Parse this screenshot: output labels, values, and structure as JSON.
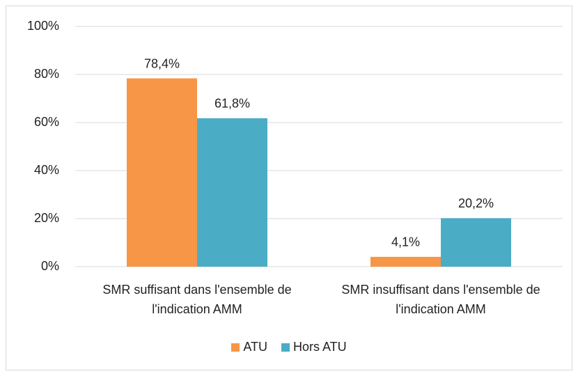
{
  "chart_data": {
    "type": "bar",
    "categories": [
      "SMR suffisant dans l'ensemble de l'indication AMM",
      "SMR insuffisant dans l'ensemble de l'indication AMM"
    ],
    "series": [
      {
        "name": "ATU",
        "color": "#f79646",
        "values": [
          78.4,
          4.1
        ],
        "value_labels": [
          "78,4%",
          "4,1%"
        ]
      },
      {
        "name": "Hors ATU",
        "color": "#4bacc6",
        "values": [
          61.8,
          20.2
        ],
        "value_labels": [
          "61,8%",
          "20,2%"
        ]
      }
    ],
    "ylim": [
      0,
      100
    ],
    "yticks": [
      {
        "value": 0,
        "label": "0%"
      },
      {
        "value": 20,
        "label": "20%"
      },
      {
        "value": 40,
        "label": "40%"
      },
      {
        "value": 60,
        "label": "60%"
      },
      {
        "value": 80,
        "label": "80%"
      },
      {
        "value": 100,
        "label": "100%"
      }
    ],
    "grid": true,
    "legend": "bottom"
  }
}
